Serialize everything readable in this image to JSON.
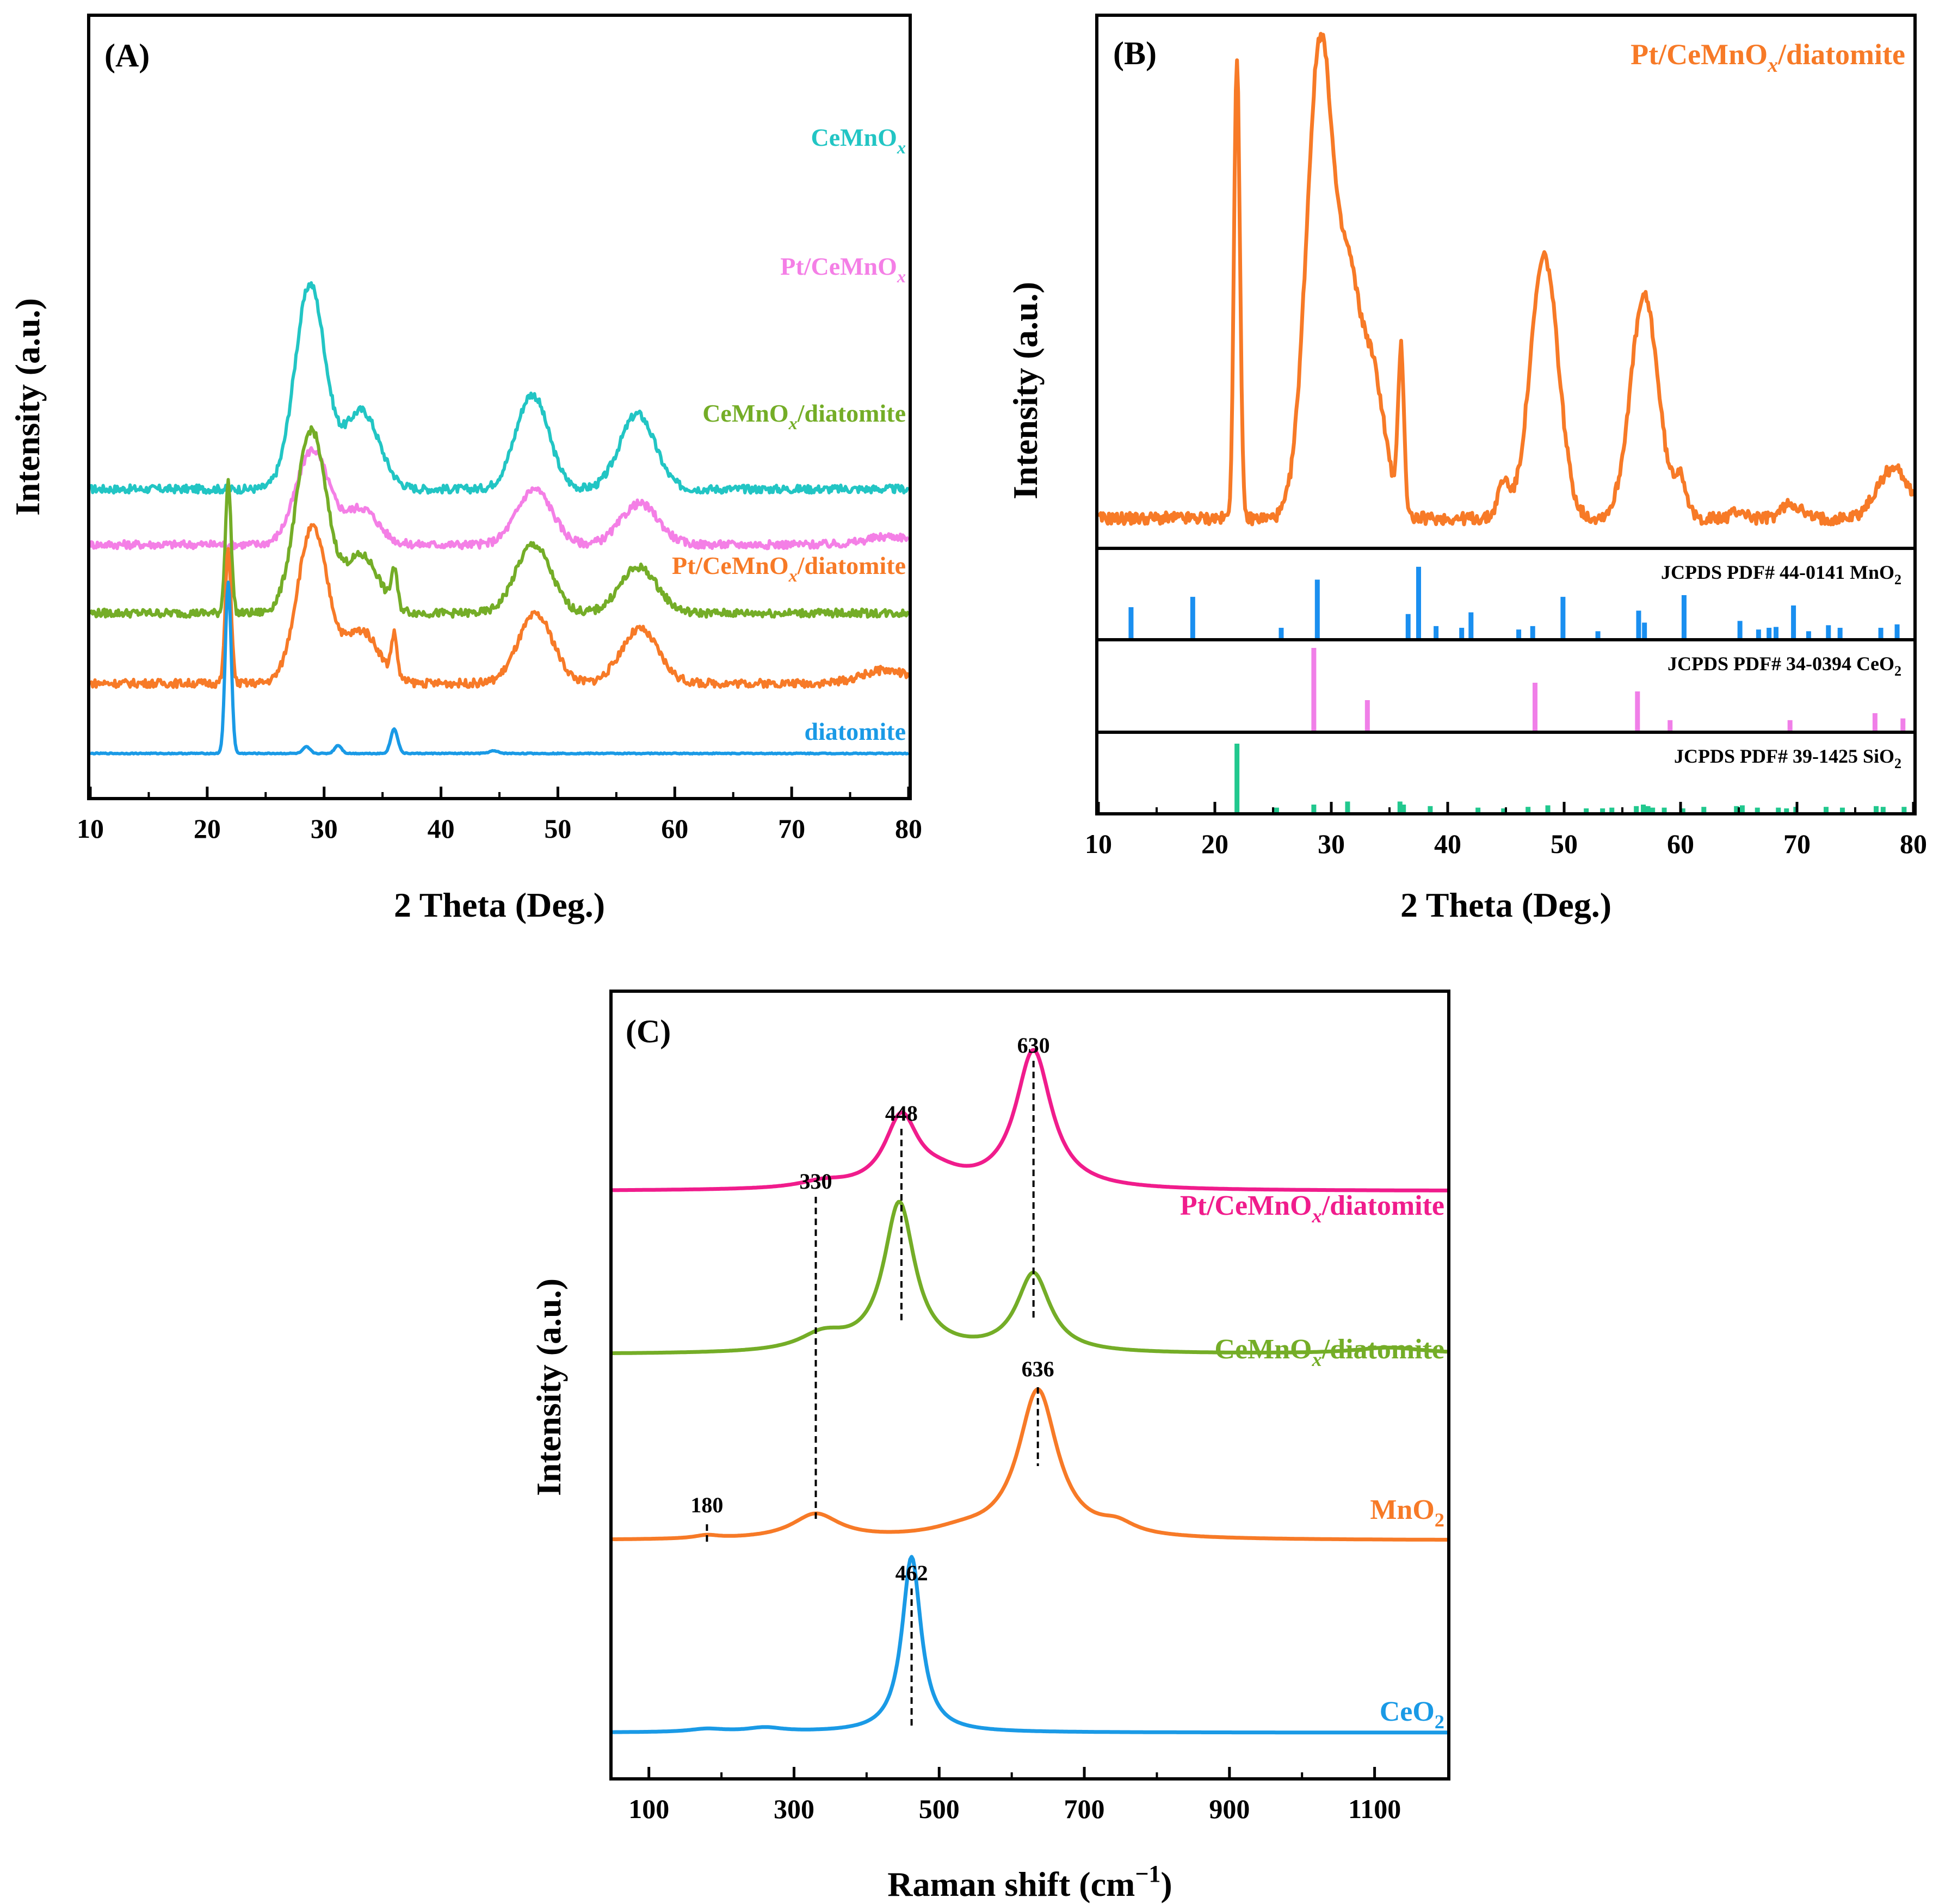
{
  "chart_data": [
    {
      "panel": "A",
      "type": "line",
      "panel_label": "(A)",
      "xlabel": "2 Theta (Deg.)",
      "ylabel": "Intensity (a.u.)",
      "xlim": [
        10,
        80
      ],
      "xticks": [
        10,
        20,
        30,
        40,
        50,
        60,
        70,
        80
      ],
      "yticks": false,
      "series": [
        {
          "name": "CeMnO",
          "sub": "x",
          "suffix": "",
          "color": "#22c5c4",
          "baseline": 1.62,
          "scale": 1.0,
          "noise": 0.025,
          "peaks": [
            [
              28.8,
              1.25,
              1.3
            ],
            [
              33.2,
              0.48,
              1.5
            ],
            [
              47.8,
              0.58,
              1.4
            ],
            [
              56.8,
              0.46,
              1.5
            ]
          ]
        },
        {
          "name": "Pt/CeMnO",
          "sub": "x",
          "suffix": "",
          "color": "#f47fe6",
          "baseline": 1.28,
          "scale": 1.0,
          "noise": 0.025,
          "peaks": [
            [
              29.0,
              0.58,
              1.4
            ],
            [
              33.2,
              0.22,
              1.4
            ],
            [
              48.0,
              0.34,
              1.5
            ],
            [
              57.0,
              0.25,
              1.6
            ],
            [
              78.5,
              0.05,
              2.0
            ]
          ]
        },
        {
          "name": "CeMnO",
          "sub": "x",
          "suffix": "/diatomite",
          "color": "#74ad27",
          "baseline": 0.86,
          "scale": 1.0,
          "noise": 0.025,
          "peaks": [
            [
              21.8,
              0.8,
              0.25
            ],
            [
              28.9,
              1.12,
              1.3
            ],
            [
              33.2,
              0.35,
              1.5
            ],
            [
              36.0,
              0.22,
              0.25
            ],
            [
              47.9,
              0.42,
              1.5
            ],
            [
              56.9,
              0.28,
              1.6
            ]
          ]
        },
        {
          "name": "Pt/CeMnO",
          "sub": "x",
          "suffix": "/diatomite",
          "color": "#f77a27",
          "baseline": 0.43,
          "scale": 1.0,
          "noise": 0.025,
          "peaks": [
            [
              21.8,
              0.82,
              0.25
            ],
            [
              29.0,
              0.95,
              1.3
            ],
            [
              33.2,
              0.32,
              1.5
            ],
            [
              36.0,
              0.25,
              0.25
            ],
            [
              48.1,
              0.42,
              1.5
            ],
            [
              57.0,
              0.33,
              1.6
            ],
            [
              78.0,
              0.08,
              2.0
            ]
          ]
        },
        {
          "name": "diatomite",
          "sub": "",
          "suffix": "",
          "color": "#1a9ae6",
          "baseline": 0.0,
          "scale": 1.0,
          "noise": 0.003,
          "peaks": [
            [
              21.8,
              1.05,
              0.25
            ],
            [
              28.5,
              0.04,
              0.3
            ],
            [
              31.2,
              0.05,
              0.3
            ],
            [
              36.0,
              0.15,
              0.3
            ],
            [
              44.5,
              0.015,
              0.4
            ]
          ]
        }
      ]
    },
    {
      "panel": "B",
      "type": "line",
      "panel_label": "(B)",
      "xlabel": "2 Theta (Deg.)",
      "ylabel": "Intensity (a.u.)",
      "xlim": [
        10,
        80
      ],
      "xticks": [
        10,
        20,
        30,
        40,
        50,
        60,
        70,
        80
      ],
      "pattern": {
        "name": "Pt/CeMnO",
        "sub": "x",
        "suffix": "/diatomite",
        "color": "#f77a27",
        "baseline": 0.04,
        "noise": 0.012,
        "peaks": [
          [
            21.9,
            0.92,
            0.25
          ],
          [
            29.1,
            0.96,
            1.2
          ],
          [
            31.5,
            0.3,
            0.8
          ],
          [
            33.3,
            0.32,
            1.2
          ],
          [
            36.0,
            0.32,
            0.25
          ],
          [
            44.8,
            0.07,
            0.5
          ],
          [
            48.3,
            0.52,
            1.2
          ],
          [
            56.9,
            0.44,
            1.2
          ],
          [
            60.0,
            0.08,
            0.5
          ],
          [
            65.0,
            0.015,
            0.6
          ],
          [
            69.5,
            0.03,
            0.8
          ],
          [
            78.3,
            0.1,
            1.4
          ]
        ]
      },
      "references": [
        {
          "label_text": "JCPDS PDF# 44-0141 MnO",
          "label_sub": "2",
          "color": "#1a8ff0",
          "lines": [
            [
              12.8,
              0.36
            ],
            [
              18.1,
              0.48
            ],
            [
              25.7,
              0.12
            ],
            [
              28.8,
              0.68
            ],
            [
              36.6,
              0.28
            ],
            [
              37.5,
              0.83
            ],
            [
              39.0,
              0.14
            ],
            [
              41.2,
              0.12
            ],
            [
              42.0,
              0.3
            ],
            [
              46.1,
              0.1
            ],
            [
              47.3,
              0.14
            ],
            [
              49.9,
              0.48
            ],
            [
              52.9,
              0.08
            ],
            [
              56.4,
              0.32
            ],
            [
              56.9,
              0.18
            ],
            [
              60.3,
              0.5
            ],
            [
              65.1,
              0.2
            ],
            [
              66.7,
              0.1
            ],
            [
              67.6,
              0.12
            ],
            [
              68.2,
              0.13
            ],
            [
              69.7,
              0.38
            ],
            [
              71.0,
              0.08
            ],
            [
              72.7,
              0.15
            ],
            [
              73.7,
              0.12
            ],
            [
              77.2,
              0.12
            ],
            [
              78.6,
              0.16
            ]
          ]
        },
        {
          "label_text": "JCPDS PDF# 34-0394 CeO",
          "label_sub": "2",
          "color": "#f07fe8",
          "lines": [
            [
              28.5,
              0.95
            ],
            [
              33.1,
              0.35
            ],
            [
              47.5,
              0.55
            ],
            [
              56.3,
              0.45
            ],
            [
              59.1,
              0.12
            ],
            [
              69.4,
              0.12
            ],
            [
              76.7,
              0.2
            ],
            [
              79.1,
              0.14
            ]
          ]
        },
        {
          "label_text": "JCPDS PDF# 39-1425 SiO",
          "label_sub": "2",
          "color": "#21c88e",
          "lines": [
            [
              21.9,
              0.9
            ],
            [
              25.3,
              0.06
            ],
            [
              28.5,
              0.1
            ],
            [
              31.4,
              0.14
            ],
            [
              35.9,
              0.14
            ],
            [
              36.2,
              0.1
            ],
            [
              38.5,
              0.08
            ],
            [
              42.6,
              0.06
            ],
            [
              44.8,
              0.05
            ],
            [
              46.9,
              0.07
            ],
            [
              48.6,
              0.09
            ],
            [
              51.9,
              0.05
            ],
            [
              53.3,
              0.05
            ],
            [
              54.1,
              0.06
            ],
            [
              56.2,
              0.08
            ],
            [
              56.8,
              0.1
            ],
            [
              57.2,
              0.08
            ],
            [
              57.6,
              0.06
            ],
            [
              58.6,
              0.06
            ],
            [
              60.2,
              0.05
            ],
            [
              62.0,
              0.07
            ],
            [
              64.8,
              0.08
            ],
            [
              65.3,
              0.09
            ],
            [
              66.6,
              0.06
            ],
            [
              68.4,
              0.06
            ],
            [
              69.1,
              0.05
            ],
            [
              69.9,
              0.07
            ],
            [
              72.5,
              0.07
            ],
            [
              73.9,
              0.06
            ],
            [
              76.8,
              0.08
            ],
            [
              77.4,
              0.07
            ],
            [
              79.2,
              0.07
            ]
          ]
        }
      ]
    },
    {
      "panel": "C",
      "type": "line",
      "panel_label": "(C)",
      "xlabel": "Raman shift (cm",
      "xlabel_sup": "−1",
      "xlabel_close": ")",
      "ylabel": "Intensity (a.u.)",
      "xlim": [
        50,
        1200
      ],
      "xticks": [
        100,
        300,
        500,
        700,
        900,
        1100
      ],
      "series": [
        {
          "name": "Pt/CeMnO",
          "sub": "x",
          "suffix": "/diatomite",
          "color": "#f01c8c",
          "baseline": 2.62,
          "peaks": [
            [
              448,
              0.34,
              28
            ],
            [
              630,
              0.67,
              30
            ],
            [
              340,
              0.03,
              40
            ],
            [
              500,
              0.05,
              40
            ]
          ]
        },
        {
          "name": "CeMnO",
          "sub": "x",
          "suffix": "/diatomite",
          "color": "#74ad27",
          "baseline": 1.83,
          "peaks": [
            [
              445,
              0.72,
              26
            ],
            [
              630,
              0.38,
              28
            ],
            [
              340,
              0.08,
              40
            ],
            [
              1120,
              0.03,
              60
            ]
          ]
        },
        {
          "name": "MnO",
          "sub": "2",
          "suffix": "",
          "color": "#f77a27",
          "baseline": 0.93,
          "peaks": [
            [
              636,
              0.72,
              33
            ],
            [
              330,
              0.12,
              40
            ],
            [
              180,
              0.015,
              20
            ],
            [
              745,
              0.05,
              30
            ],
            [
              530,
              0.03,
              50
            ]
          ]
        },
        {
          "name": "CeO",
          "sub": "2",
          "suffix": "",
          "color": "#1a9ae6",
          "baseline": 0.0,
          "peaks": [
            [
              462,
              0.85,
              16
            ],
            [
              180,
              0.015,
              30
            ],
            [
              260,
              0.02,
              30
            ]
          ]
        }
      ],
      "annotations": [
        {
          "text": "630",
          "x": 630
        },
        {
          "text": "448",
          "x": 448
        },
        {
          "text": "330",
          "x": 330
        },
        {
          "text": "636",
          "x": 636
        },
        {
          "text": "180",
          "x": 180
        },
        {
          "text": "462",
          "x": 462
        }
      ]
    }
  ]
}
